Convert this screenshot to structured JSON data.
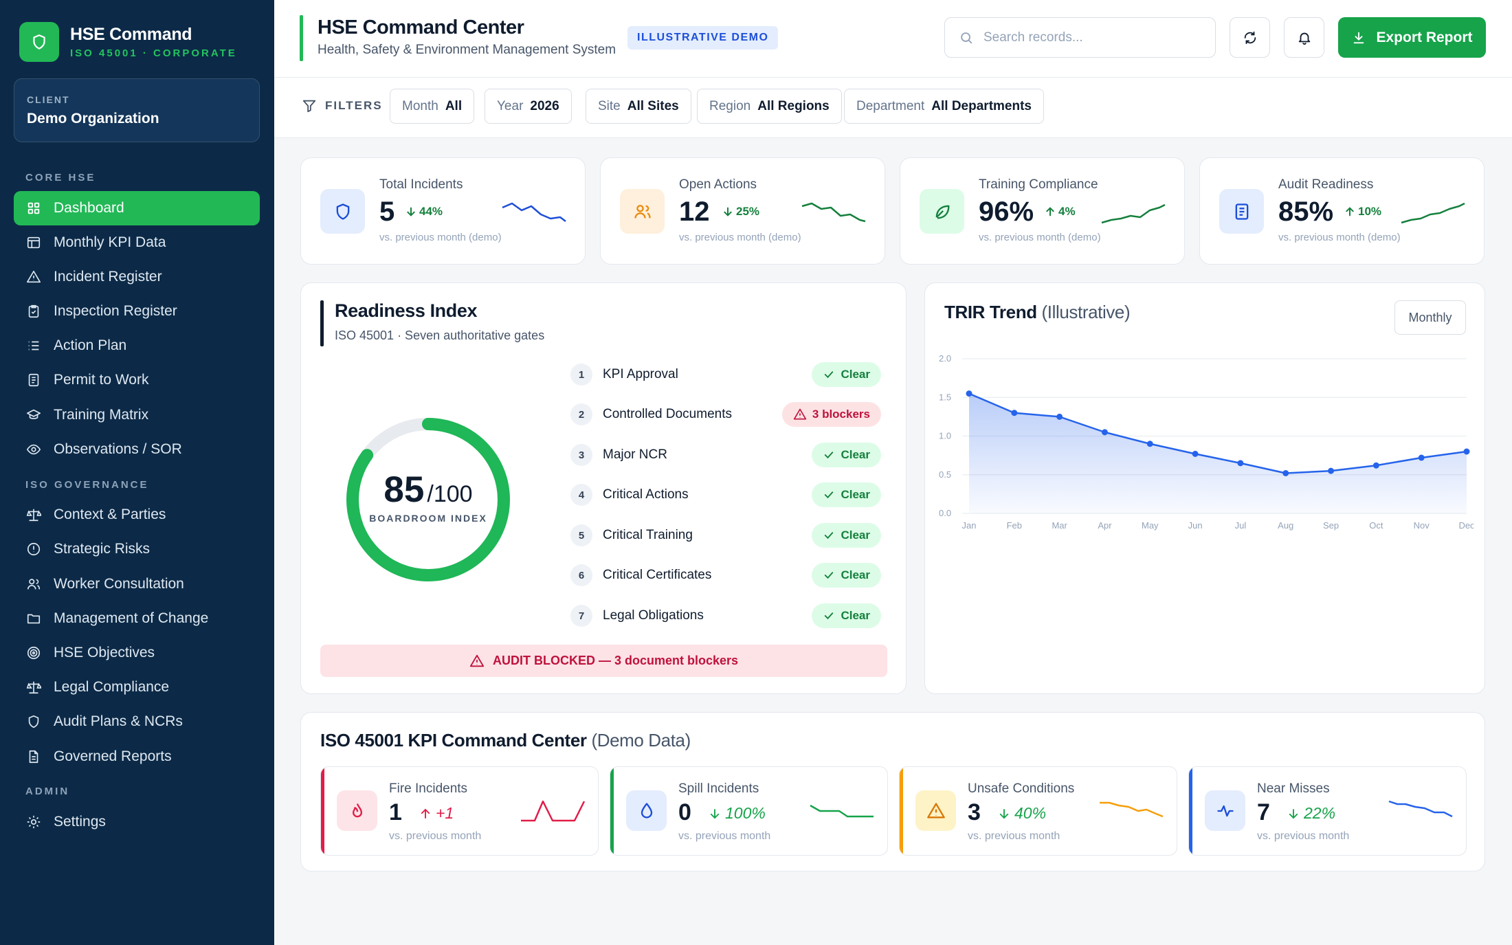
{
  "brand": {
    "title": "HSE Command",
    "subtitle": "ISO 45001 · CORPORATE"
  },
  "client": {
    "label": "CLIENT",
    "name": "Demo Organization"
  },
  "sidebar": {
    "sections": [
      "CORE HSE",
      "ISO GOVERNANCE",
      "ADMIN"
    ],
    "items": [
      {
        "label": "Dashboard",
        "icon": "grid-icon",
        "active": true
      },
      {
        "label": "Monthly KPI Data",
        "icon": "table-icon"
      },
      {
        "label": "Incident Register",
        "icon": "warning-icon"
      },
      {
        "label": "Inspection Register",
        "icon": "clipboard-check-icon"
      },
      {
        "label": "Action Plan",
        "icon": "list-icon"
      },
      {
        "label": "Permit to Work",
        "icon": "document-icon"
      },
      {
        "label": "Training Matrix",
        "icon": "graduation-cap-icon"
      },
      {
        "label": "Observations / SOR",
        "icon": "eye-icon"
      },
      {
        "label": "Context & Parties",
        "icon": "scale-icon"
      },
      {
        "label": "Strategic Risks",
        "icon": "alert-circle-icon"
      },
      {
        "label": "Worker Consultation",
        "icon": "users-icon"
      },
      {
        "label": "Management of Change",
        "icon": "folder-icon"
      },
      {
        "label": "HSE Objectives",
        "icon": "target-icon"
      },
      {
        "label": "Legal Compliance",
        "icon": "scale-icon"
      },
      {
        "label": "Audit Plans & NCRs",
        "icon": "shield-icon"
      },
      {
        "label": "Governed Reports",
        "icon": "file-text-icon"
      },
      {
        "label": "Settings",
        "icon": "gear-icon"
      }
    ]
  },
  "header": {
    "title": "HSE Command Center",
    "subtitle": "Health, Safety & Environment Management System",
    "badge": "ILLUSTRATIVE DEMO",
    "search_placeholder": "Search records...",
    "export_label": "Export Report"
  },
  "filters": {
    "label": "FILTERS",
    "items": [
      {
        "key": "Month",
        "value": "All"
      },
      {
        "key": "Year",
        "value": "2026"
      },
      {
        "key": "Site",
        "value": "All Sites"
      },
      {
        "key": "Region",
        "value": "All Regions"
      },
      {
        "key": "Department",
        "value": "All Departments"
      }
    ]
  },
  "kpis": [
    {
      "label": "Total Incidents",
      "value": "5",
      "delta": "44%",
      "direction": "down",
      "note": "vs. previous month (demo)",
      "icon": "shield-icon",
      "color": "#1d4ed8"
    },
    {
      "label": "Open Actions",
      "value": "12",
      "delta": "25%",
      "direction": "down",
      "note": "vs. previous month (demo)",
      "icon": "users-icon",
      "color": "#15803d"
    },
    {
      "label": "Training Compliance",
      "value": "96%",
      "delta": "4%",
      "direction": "up",
      "note": "vs. previous month (demo)",
      "icon": "leaf-icon",
      "color": "#15803d"
    },
    {
      "label": "Audit Readiness",
      "value": "85%",
      "delta": "10%",
      "direction": "up",
      "note": "vs. previous month (demo)",
      "icon": "document-icon",
      "color": "#15803d"
    }
  ],
  "readiness": {
    "title": "Readiness Index",
    "subtitle": "ISO 45001 · Seven authoritative gates",
    "score": "85",
    "max": "/100",
    "caption": "BOARDROOM INDEX",
    "score_fraction": 0.85,
    "gates": [
      {
        "num": "1",
        "label": "KPI Approval",
        "status": "Clear",
        "state": "clear"
      },
      {
        "num": "2",
        "label": "Controlled Documents",
        "status": "3 blockers",
        "state": "blocked"
      },
      {
        "num": "3",
        "label": "Major NCR",
        "status": "Clear",
        "state": "clear"
      },
      {
        "num": "4",
        "label": "Critical Actions",
        "status": "Clear",
        "state": "clear"
      },
      {
        "num": "5",
        "label": "Critical Training",
        "status": "Clear",
        "state": "clear"
      },
      {
        "num": "6",
        "label": "Critical Certificates",
        "status": "Clear",
        "state": "clear"
      },
      {
        "num": "7",
        "label": "Legal Obligations",
        "status": "Clear",
        "state": "clear"
      }
    ],
    "banner": "AUDIT BLOCKED — 3 document blockers"
  },
  "trir": {
    "title": "TRIR Trend",
    "title_suffix": "(Illustrative)",
    "period_button": "Monthly"
  },
  "chart_data": {
    "type": "area",
    "title": "TRIR Trend (Illustrative)",
    "categories": [
      "Jan",
      "Feb",
      "Mar",
      "Apr",
      "May",
      "Jun",
      "Jul",
      "Aug",
      "Sep",
      "Oct",
      "Nov",
      "Dec"
    ],
    "values": [
      1.55,
      1.3,
      1.25,
      1.05,
      0.9,
      0.77,
      0.65,
      0.52,
      0.55,
      0.62,
      0.72,
      0.8
    ],
    "yticks": [
      "0.0",
      "0.5",
      "1.0",
      "1.5",
      "2.0"
    ],
    "ylim": [
      0,
      2.0
    ],
    "grid": true,
    "color": "#2563eb"
  },
  "bottom": {
    "title": "ISO 45001 KPI Command Center",
    "title_suffix": "(Demo Data)",
    "cards": [
      {
        "label": "Fire Incidents",
        "value": "1",
        "delta": "+1",
        "direction": "up",
        "note": "vs. previous month",
        "icon": "flame-icon",
        "color": "#e11d48"
      },
      {
        "label": "Spill Incidents",
        "value": "0",
        "delta": "100%",
        "direction": "down",
        "note": "vs. previous month",
        "icon": "droplet-icon",
        "color": "#16a34a"
      },
      {
        "label": "Unsafe Conditions",
        "value": "3",
        "delta": "40%",
        "direction": "down",
        "note": "vs. previous month",
        "icon": "warning-icon",
        "color": "#f59e0b"
      },
      {
        "label": "Near Misses",
        "value": "7",
        "delta": "22%",
        "direction": "down",
        "note": "vs. previous month",
        "icon": "activity-icon",
        "color": "#2563eb"
      }
    ]
  }
}
